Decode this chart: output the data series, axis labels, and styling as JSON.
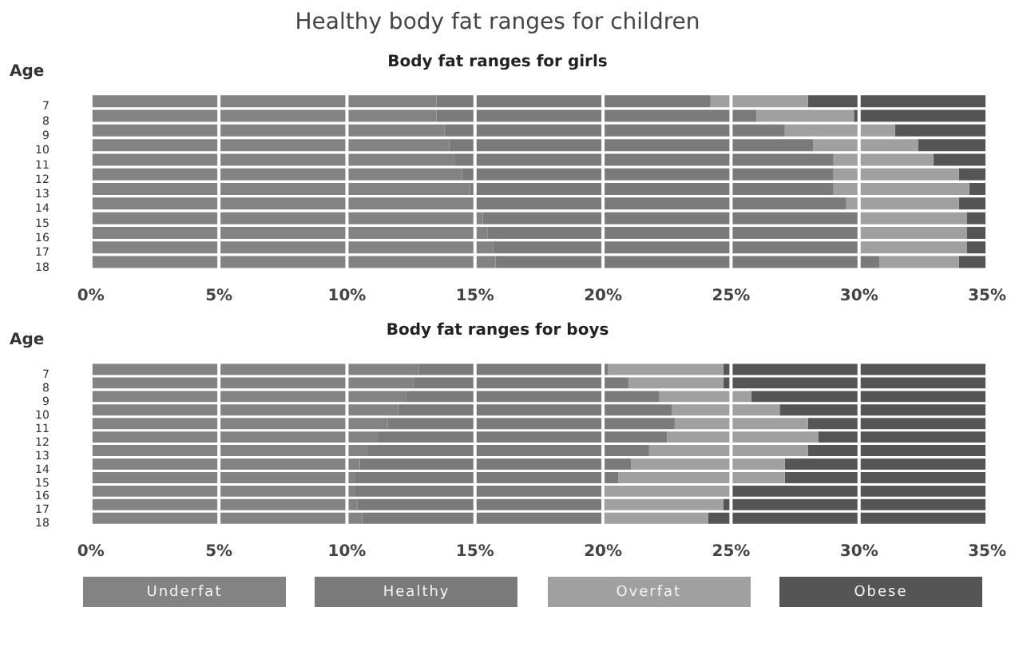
{
  "chart_data": [
    {
      "type": "bar",
      "orientation": "horizontal",
      "stacked": true,
      "title": "Healthy body fat ranges for children",
      "subtitle": "Body fat ranges for girls",
      "ylabel": "Age",
      "categories": [
        "7",
        "8",
        "9",
        "10",
        "11",
        "12",
        "13",
        "14",
        "15",
        "16",
        "17",
        "18"
      ],
      "series": [
        {
          "color": "#838383",
          "values": [
            13.5,
            13.5,
            13.8,
            14.0,
            14.2,
            14.5,
            14.8,
            15.0,
            15.3,
            15.5,
            15.7,
            15.8
          ]
        },
        {
          "color": "#7a7a7a",
          "values": [
            10.7,
            12.5,
            13.3,
            14.2,
            14.8,
            14.5,
            14.2,
            14.5,
            14.7,
            14.5,
            14.3,
            15.0
          ]
        },
        {
          "color": "#a0a0a0",
          "values": [
            3.8,
            3.8,
            4.3,
            4.1,
            3.9,
            4.9,
            5.3,
            4.4,
            4.2,
            4.2,
            4.2,
            3.1
          ]
        },
        {
          "color": "#555555",
          "values": [
            7.0,
            5.2,
            3.6,
            2.7,
            2.1,
            1.1,
            0.7,
            1.1,
            0.8,
            0.8,
            0.8,
            1.1
          ]
        }
      ],
      "xlim": [
        0,
        35
      ],
      "xticks": [
        {
          "value": 0,
          "label": "0%"
        },
        {
          "value": 5,
          "label": "5%"
        },
        {
          "value": 10,
          "label": "10%"
        },
        {
          "value": 15,
          "label": "15%"
        },
        {
          "value": 20,
          "label": "20%"
        },
        {
          "value": 25,
          "label": "25%"
        },
        {
          "value": 30,
          "label": "30%"
        },
        {
          "value": 35,
          "label": "35%"
        }
      ],
      "grid": "x",
      "legend": false
    },
    {
      "type": "bar",
      "orientation": "horizontal",
      "stacked": true,
      "title": "Body fat ranges for boys",
      "ylabel": "Age",
      "categories": [
        "7",
        "8",
        "9",
        "10",
        "11",
        "12",
        "13",
        "14",
        "15",
        "16",
        "17",
        "18"
      ],
      "series": [
        {
          "name": "Underfat",
          "color": "#838383",
          "values": [
            12.8,
            12.6,
            12.3,
            12.0,
            11.6,
            11.2,
            10.8,
            10.5,
            10.3,
            10.3,
            10.4,
            10.6
          ]
        },
        {
          "name": "Healthy",
          "color": "#7a7a7a",
          "values": [
            7.4,
            8.4,
            9.9,
            10.7,
            11.2,
            11.3,
            11.0,
            10.6,
            10.3,
            9.8,
            9.7,
            9.5
          ]
        },
        {
          "name": "Overfat",
          "color": "#a0a0a0",
          "values": [
            4.5,
            3.7,
            3.6,
            4.2,
            5.2,
            5.9,
            6.2,
            6.0,
            6.5,
            4.9,
            4.6,
            4.0
          ]
        },
        {
          "name": "Obese",
          "color": "#555555",
          "values": [
            10.3,
            10.3,
            9.2,
            8.1,
            7.0,
            6.6,
            7.0,
            7.9,
            7.9,
            10.0,
            10.3,
            10.9
          ]
        }
      ],
      "xlim": [
        0,
        35
      ],
      "xticks": [
        {
          "value": 0,
          "label": "0%"
        },
        {
          "value": 5,
          "label": "5%"
        },
        {
          "value": 10,
          "label": "10%"
        },
        {
          "value": 15,
          "label": "15%"
        },
        {
          "value": 20,
          "label": "20%"
        },
        {
          "value": 25,
          "label": "25%"
        },
        {
          "value": 30,
          "label": "30%"
        },
        {
          "value": 35,
          "label": "35%"
        }
      ],
      "grid": "x",
      "legend": "bottom"
    }
  ]
}
